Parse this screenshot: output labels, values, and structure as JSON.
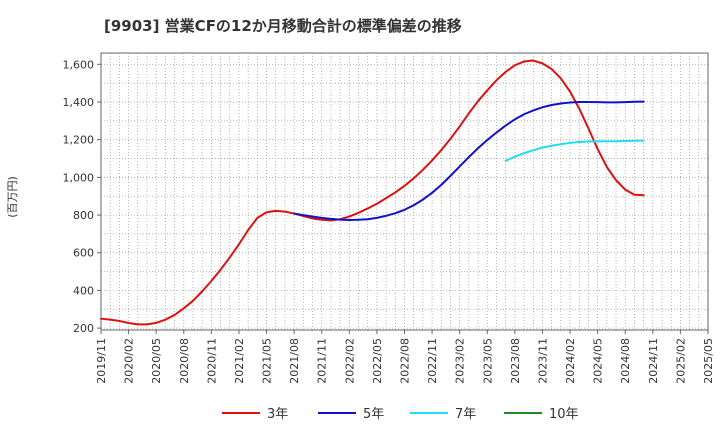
{
  "chart_data": {
    "type": "line",
    "title": "[9903]  営業CFの12か月移動合計の標準偏差の推移",
    "ylabel": "(百万円)",
    "xlabel": "",
    "ylim": [
      190,
      1660
    ],
    "yticks": [
      200,
      400,
      600,
      800,
      1000,
      1200,
      1400,
      1600
    ],
    "ytick_labels": [
      "200",
      "400",
      "600",
      "800",
      "1,000",
      "1,200",
      "1,400",
      "1,600"
    ],
    "xlim": [
      "2019-11",
      "2025-05"
    ],
    "xticks": [
      "2019/11",
      "2020/02",
      "2020/05",
      "2020/08",
      "2020/11",
      "2021/02",
      "2021/05",
      "2021/08",
      "2021/11",
      "2022/02",
      "2022/05",
      "2022/08",
      "2022/11",
      "2023/02",
      "2023/05",
      "2023/08",
      "2023/11",
      "2024/02",
      "2024/05",
      "2024/08",
      "2024/11",
      "2025/02",
      "2025/05"
    ],
    "grid": true,
    "legend_position": "bottom",
    "series": [
      {
        "name": "3年",
        "color": "#dd1111",
        "points": [
          [
            "2019-11",
            250
          ],
          [
            "2019-12",
            245
          ],
          [
            "2020-01",
            238
          ],
          [
            "2020-02",
            227
          ],
          [
            "2020-03",
            220
          ],
          [
            "2020-04",
            220
          ],
          [
            "2020-05",
            228
          ],
          [
            "2020-06",
            245
          ],
          [
            "2020-07",
            270
          ],
          [
            "2020-08",
            305
          ],
          [
            "2020-09",
            345
          ],
          [
            "2020-10",
            395
          ],
          [
            "2020-11",
            450
          ],
          [
            "2020-12",
            510
          ],
          [
            "2021-01",
            575
          ],
          [
            "2021-02",
            645
          ],
          [
            "2021-03",
            720
          ],
          [
            "2021-04",
            785
          ],
          [
            "2021-05",
            815
          ],
          [
            "2021-06",
            822
          ],
          [
            "2021-07",
            818
          ],
          [
            "2021-08",
            808
          ],
          [
            "2021-09",
            795
          ],
          [
            "2021-10",
            782
          ],
          [
            "2021-11",
            775
          ],
          [
            "2021-12",
            772
          ],
          [
            "2022-01",
            778
          ],
          [
            "2022-02",
            792
          ],
          [
            "2022-03",
            812
          ],
          [
            "2022-04",
            835
          ],
          [
            "2022-05",
            860
          ],
          [
            "2022-06",
            890
          ],
          [
            "2022-07",
            920
          ],
          [
            "2022-08",
            955
          ],
          [
            "2022-09",
            995
          ],
          [
            "2022-10",
            1040
          ],
          [
            "2022-11",
            1090
          ],
          [
            "2022-12",
            1145
          ],
          [
            "2023-01",
            1205
          ],
          [
            "2023-02",
            1270
          ],
          [
            "2023-03",
            1340
          ],
          [
            "2023-04",
            1405
          ],
          [
            "2023-05",
            1462
          ],
          [
            "2023-06",
            1515
          ],
          [
            "2023-07",
            1560
          ],
          [
            "2023-08",
            1595
          ],
          [
            "2023-09",
            1615
          ],
          [
            "2023-10",
            1620
          ],
          [
            "2023-11",
            1605
          ],
          [
            "2023-12",
            1575
          ],
          [
            "2024-01",
            1525
          ],
          [
            "2024-02",
            1455
          ],
          [
            "2024-03",
            1365
          ],
          [
            "2024-04",
            1260
          ],
          [
            "2024-05",
            1150
          ],
          [
            "2024-06",
            1055
          ],
          [
            "2024-07",
            985
          ],
          [
            "2024-08",
            935
          ],
          [
            "2024-09",
            908
          ],
          [
            "2024-10",
            905
          ]
        ]
      },
      {
        "name": "5年",
        "color": "#1111cc",
        "points": [
          [
            "2021-08",
            808
          ],
          [
            "2021-09",
            800
          ],
          [
            "2021-10",
            792
          ],
          [
            "2021-11",
            785
          ],
          [
            "2021-12",
            780
          ],
          [
            "2022-01",
            776
          ],
          [
            "2022-02",
            774
          ],
          [
            "2022-03",
            775
          ],
          [
            "2022-04",
            778
          ],
          [
            "2022-05",
            785
          ],
          [
            "2022-06",
            796
          ],
          [
            "2022-07",
            810
          ],
          [
            "2022-08",
            828
          ],
          [
            "2022-09",
            852
          ],
          [
            "2022-10",
            882
          ],
          [
            "2022-11",
            918
          ],
          [
            "2022-12",
            960
          ],
          [
            "2023-01",
            1008
          ],
          [
            "2023-02",
            1058
          ],
          [
            "2023-03",
            1108
          ],
          [
            "2023-04",
            1155
          ],
          [
            "2023-05",
            1198
          ],
          [
            "2023-06",
            1238
          ],
          [
            "2023-07",
            1275
          ],
          [
            "2023-08",
            1308
          ],
          [
            "2023-09",
            1335
          ],
          [
            "2023-10",
            1355
          ],
          [
            "2023-11",
            1372
          ],
          [
            "2023-12",
            1384
          ],
          [
            "2024-01",
            1392
          ],
          [
            "2024-02",
            1397
          ],
          [
            "2024-03",
            1400
          ],
          [
            "2024-04",
            1400
          ],
          [
            "2024-05",
            1399
          ],
          [
            "2024-06",
            1398
          ],
          [
            "2024-07",
            1398
          ],
          [
            "2024-08",
            1399
          ],
          [
            "2024-09",
            1401
          ],
          [
            "2024-10",
            1402
          ]
        ]
      },
      {
        "name": "7年",
        "color": "#22ddee",
        "points": [
          [
            "2023-07",
            1088
          ],
          [
            "2023-08",
            1110
          ],
          [
            "2023-09",
            1128
          ],
          [
            "2023-10",
            1144
          ],
          [
            "2023-11",
            1158
          ],
          [
            "2023-12",
            1168
          ],
          [
            "2024-01",
            1176
          ],
          [
            "2024-02",
            1183
          ],
          [
            "2024-03",
            1188
          ],
          [
            "2024-04",
            1190
          ],
          [
            "2024-05",
            1191
          ],
          [
            "2024-06",
            1192
          ],
          [
            "2024-07",
            1192
          ],
          [
            "2024-08",
            1193
          ],
          [
            "2024-09",
            1194
          ],
          [
            "2024-10",
            1195
          ]
        ]
      },
      {
        "name": "10年",
        "color": "#228822",
        "points": []
      }
    ]
  }
}
